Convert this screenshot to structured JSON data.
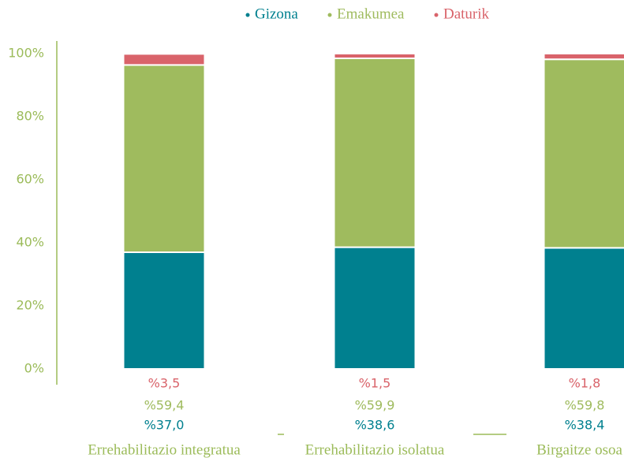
{
  "chart_data": {
    "type": "stacked_bar",
    "categories": [
      "Errehabilitazio integratua",
      "Errehabilitazio isolatua",
      "Birgaitze osoa"
    ],
    "series": [
      {
        "name": "Gizona",
        "color": "#00808f",
        "values": [
          37.0,
          38.6,
          38.4
        ],
        "value_labels": [
          "%37,0",
          "%38,6",
          "%38,4"
        ]
      },
      {
        "name": "Emakumea",
        "color": "#9fbb5e",
        "values": [
          59.4,
          59.9,
          59.8
        ],
        "value_labels": [
          "%59,4",
          "%59,9",
          "%59,8"
        ]
      },
      {
        "name": "Daturik",
        "color": "#d9636a",
        "values": [
          3.5,
          1.5,
          1.8
        ],
        "value_labels": [
          "%3,5",
          "%1,5",
          "%1,8"
        ]
      }
    ],
    "ylim": [
      0,
      100
    ],
    "yticks": [
      {
        "value": 0,
        "label": "0%"
      },
      {
        "value": 20,
        "label": "20%"
      },
      {
        "value": 40,
        "label": "40%"
      },
      {
        "value": 60,
        "label": "60%"
      },
      {
        "value": 80,
        "label": "80%"
      },
      {
        "value": 100,
        "label": "100%"
      }
    ],
    "legend": "top"
  }
}
